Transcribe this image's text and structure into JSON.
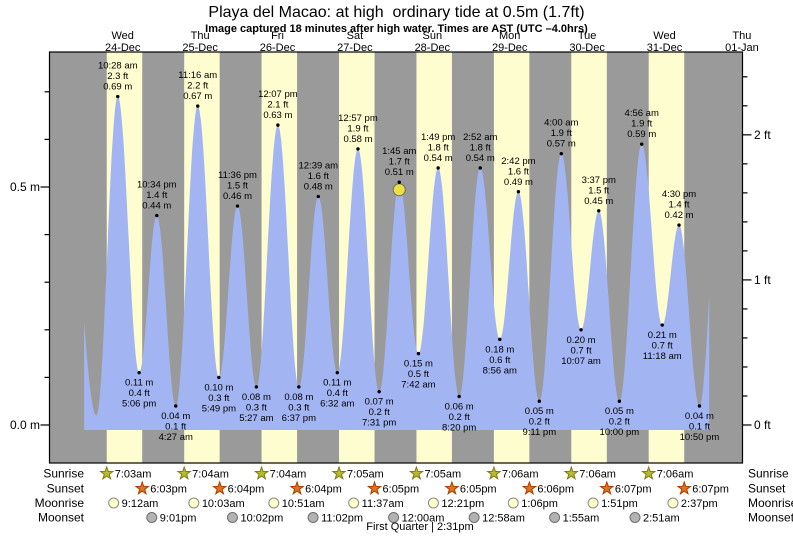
{
  "title": "Playa del Macao: at high  ordinary tide at 0.5m (1.7ft)",
  "subtitle": "Image captured 18 minutes after high water. Times are AST (UTC –4.0hrs)",
  "footer": {
    "moon_phase": "First Quarter | 2:31pm"
  },
  "chart_data": {
    "type": "area",
    "title": "Playa del Macao: at high  ordinary tide at 0.5m (1.7ft)",
    "subtitle": "Image captured 18 minutes after high water. Times are AST (UTC –4.0hrs)",
    "x_unit": "days (Dec 24 00:00 = 0)",
    "y_unit": "m",
    "ylim": [
      0,
      0.78
    ],
    "days": [
      {
        "weekday": "Wed",
        "date": "24-Dec"
      },
      {
        "weekday": "Thu",
        "date": "25-Dec"
      },
      {
        "weekday": "Fri",
        "date": "26-Dec"
      },
      {
        "weekday": "Sat",
        "date": "27-Dec"
      },
      {
        "weekday": "Sun",
        "date": "28-Dec"
      },
      {
        "weekday": "Mon",
        "date": "29-Dec"
      },
      {
        "weekday": "Tue",
        "date": "30-Dec"
      },
      {
        "weekday": "Wed",
        "date": "31-Dec"
      },
      {
        "weekday": "Thu",
        "date": "01-Jan"
      }
    ],
    "y_axis_left": {
      "unit": "m",
      "minor_step": 0.1,
      "max": 0.7,
      "major_labels": [
        {
          "h": 0.5,
          "text": "0.5 m"
        },
        {
          "h": 0.0,
          "text": "0.0 m"
        }
      ]
    },
    "y_axis_right": {
      "unit": "ft",
      "minor_step_ft": 0.2,
      "max_ft": 2.4,
      "major_labels": [
        {
          "ft": 2,
          "text": "2 ft"
        },
        {
          "ft": 1,
          "text": "1 ft"
        },
        {
          "ft": 0,
          "text": "0 ft"
        }
      ]
    },
    "tide_events": [
      {
        "t": -0.22,
        "h": 0.55,
        "kind": "edge",
        "lines": []
      },
      {
        "t": 0.16,
        "h": 0.02,
        "kind": "low",
        "lines": []
      },
      {
        "t": 0.4361,
        "h": 0.69,
        "kind": "high",
        "lines": [
          "10:28 am",
          "2.3 ft",
          "0.69 m"
        ]
      },
      {
        "t": 0.7125,
        "h": 0.11,
        "kind": "low",
        "lines": [
          "0.11 m",
          "0.4 ft",
          "5:06 pm"
        ]
      },
      {
        "t": 0.9403,
        "h": 0.44,
        "kind": "high",
        "lines": [
          "10:34 pm",
          "1.4 ft",
          "0.44 m"
        ]
      },
      {
        "t": 1.1854,
        "h": 0.04,
        "kind": "low",
        "lines": [
          "0.04 m",
          "0.1 ft",
          "4:27 am"
        ]
      },
      {
        "t": 1.4694,
        "h": 0.67,
        "kind": "high",
        "lines": [
          "11:16 am",
          "2.2 ft",
          "0.67 m"
        ]
      },
      {
        "t": 1.7424,
        "h": 0.1,
        "kind": "low",
        "lines": [
          "0.10 m",
          "0.3 ft",
          "5:49 pm"
        ]
      },
      {
        "t": 1.9833,
        "h": 0.46,
        "kind": "high",
        "lines": [
          "11:36 pm",
          "1.5 ft",
          "0.46 m"
        ]
      },
      {
        "t": 2.2271,
        "h": 0.08,
        "kind": "low",
        "lines": [
          "0.08 m",
          "0.3 ft",
          "5:27 am"
        ]
      },
      {
        "t": 2.5049,
        "h": 0.63,
        "kind": "high",
        "lines": [
          "12:07 pm",
          "2.1 ft",
          "0.63 m"
        ]
      },
      {
        "t": 2.7757,
        "h": 0.08,
        "kind": "low",
        "lines": [
          "0.08 m",
          "0.3 ft",
          "6:37 pm"
        ]
      },
      {
        "t": 3.0271,
        "h": 0.48,
        "kind": "high",
        "lines": [
          "12:39 am",
          "1.6 ft",
          "0.48 m"
        ]
      },
      {
        "t": 3.2722,
        "h": 0.11,
        "kind": "low",
        "lines": [
          "0.11 m",
          "0.4 ft",
          "6:32 am"
        ]
      },
      {
        "t": 3.5396,
        "h": 0.58,
        "kind": "high",
        "lines": [
          "12:57 pm",
          "1.9 ft",
          "0.58 m"
        ]
      },
      {
        "t": 3.8132,
        "h": 0.07,
        "kind": "low",
        "lines": [
          "0.07 m",
          "0.2 ft",
          "7:31 pm"
        ]
      },
      {
        "t": 4.0729,
        "h": 0.51,
        "kind": "high",
        "current": true,
        "lines": [
          "1:45 am",
          "1.7 ft",
          "0.51 m"
        ]
      },
      {
        "t": 4.3208,
        "h": 0.15,
        "kind": "low",
        "lines": [
          "0.15 m",
          "0.5 ft",
          "7:42 am"
        ]
      },
      {
        "t": 4.5757,
        "h": 0.54,
        "kind": "high",
        "lines": [
          "1:49 pm",
          "1.8 ft",
          "0.54 m"
        ]
      },
      {
        "t": 4.8472,
        "h": 0.06,
        "kind": "low",
        "lines": [
          "0.06 m",
          "0.2 ft",
          "8:20 pm"
        ]
      },
      {
        "t": 5.1194,
        "h": 0.54,
        "kind": "high",
        "lines": [
          "2:52 am",
          "1.8 ft",
          "0.54 m"
        ]
      },
      {
        "t": 5.3722,
        "h": 0.18,
        "kind": "low",
        "lines": [
          "0.18 m",
          "0.6 ft",
          "8:56 am"
        ]
      },
      {
        "t": 5.6125,
        "h": 0.49,
        "kind": "high",
        "lines": [
          "2:42 pm",
          "1.6 ft",
          "0.49 m"
        ]
      },
      {
        "t": 5.8826,
        "h": 0.05,
        "kind": "low",
        "lines": [
          "0.05 m",
          "0.2 ft",
          "9:11 pm"
        ]
      },
      {
        "t": 6.1667,
        "h": 0.57,
        "kind": "high",
        "lines": [
          "4:00 am",
          "1.9 ft",
          "0.57 m"
        ]
      },
      {
        "t": 6.4215,
        "h": 0.2,
        "kind": "low",
        "lines": [
          "0.20 m",
          "0.7 ft",
          "10:07 am"
        ]
      },
      {
        "t": 6.6507,
        "h": 0.45,
        "kind": "high",
        "lines": [
          "3:37 pm",
          "1.5 ft",
          "0.45 m"
        ]
      },
      {
        "t": 6.9167,
        "h": 0.05,
        "kind": "low",
        "lines": [
          "0.05 m",
          "0.2 ft",
          "10:00 pm"
        ]
      },
      {
        "t": 7.2056,
        "h": 0.59,
        "kind": "high",
        "lines": [
          "4:56 am",
          "1.9 ft",
          "0.59 m"
        ]
      },
      {
        "t": 7.4708,
        "h": 0.21,
        "kind": "low",
        "lines": [
          "0.21 m",
          "0.7 ft",
          "11:18 am"
        ]
      },
      {
        "t": 7.6875,
        "h": 0.42,
        "kind": "high",
        "lines": [
          "4:30 pm",
          "1.4 ft",
          "0.42 m"
        ]
      },
      {
        "t": 7.9514,
        "h": 0.04,
        "kind": "low",
        "lines": [
          "0.04 m",
          "0.1 ft",
          "10:50 pm"
        ]
      },
      {
        "t": 8.22,
        "h": 0.55,
        "kind": "edge",
        "lines": []
      }
    ],
    "current_time_marker": {
      "t": 4.0729,
      "h": 0.51
    },
    "colors": {
      "night": "#9a9a9a",
      "day": "#fdfdcf",
      "tide": "#a3b4f3",
      "red": "#dd3b2e",
      "marker": "#ece042",
      "marker_stroke": "#6e6e6e"
    }
  },
  "astro": {
    "rows": [
      {
        "label": "Sunrise",
        "icon": "sunrise-star-icon",
        "icon_fill": "#b9ba2f",
        "icon_stroke": "#7c7c12",
        "entries": [
          {
            "time": "7:03am",
            "t": 0.2938
          },
          {
            "time": "7:04am",
            "t": 1.2944
          },
          {
            "time": "7:04am",
            "t": 2.2944
          },
          {
            "time": "7:05am",
            "t": 3.2951
          },
          {
            "time": "7:05am",
            "t": 4.2951
          },
          {
            "time": "7:06am",
            "t": 5.2958
          },
          {
            "time": "7:06am",
            "t": 6.2958
          },
          {
            "time": "7:06am",
            "t": 7.2958
          }
        ]
      },
      {
        "label": "Sunset",
        "icon": "sunset-star-icon",
        "icon_fill": "#e1731d",
        "icon_stroke": "#aa3d00",
        "entries": [
          {
            "time": "6:03pm",
            "t": 0.7521
          },
          {
            "time": "6:04pm",
            "t": 1.7528
          },
          {
            "time": "6:04pm",
            "t": 2.7528
          },
          {
            "time": "6:05pm",
            "t": 3.7535
          },
          {
            "time": "6:05pm",
            "t": 4.7535
          },
          {
            "time": "6:06pm",
            "t": 5.7542
          },
          {
            "time": "6:07pm",
            "t": 6.7549
          },
          {
            "time": "6:07pm",
            "t": 7.7549
          }
        ]
      },
      {
        "label": "Moonrise",
        "icon": "moonrise-circle-icon",
        "icon_fill": "#ffffcc",
        "icon_stroke": "#8a8a8a",
        "entries": [
          {
            "time": "9:12am",
            "t": 0.3833
          },
          {
            "time": "10:03am",
            "t": 1.4188
          },
          {
            "time": "10:51am",
            "t": 2.4521
          },
          {
            "time": "11:37am",
            "t": 3.484
          },
          {
            "time": "12:21pm",
            "t": 4.5146
          },
          {
            "time": "1:06pm",
            "t": 5.5458
          },
          {
            "time": "1:51pm",
            "t": 6.5771
          },
          {
            "time": "2:37pm",
            "t": 7.609
          }
        ]
      },
      {
        "label": "Moonset",
        "icon": "moonset-circle-icon",
        "icon_fill": "#b3b3b3",
        "icon_stroke": "#6e6e6e",
        "entries": [
          {
            "time": "9:01pm",
            "t": 0.8757
          },
          {
            "time": "10:02pm",
            "t": 1.9181
          },
          {
            "time": "11:02pm",
            "t": 2.9597
          },
          {
            "time": "12:00am",
            "t": 4.0
          },
          {
            "time": "12:58am",
            "t": 5.0403
          },
          {
            "time": "1:55am",
            "t": 6.0799
          },
          {
            "time": "2:51am",
            "t": 7.1188
          }
        ]
      }
    ]
  }
}
